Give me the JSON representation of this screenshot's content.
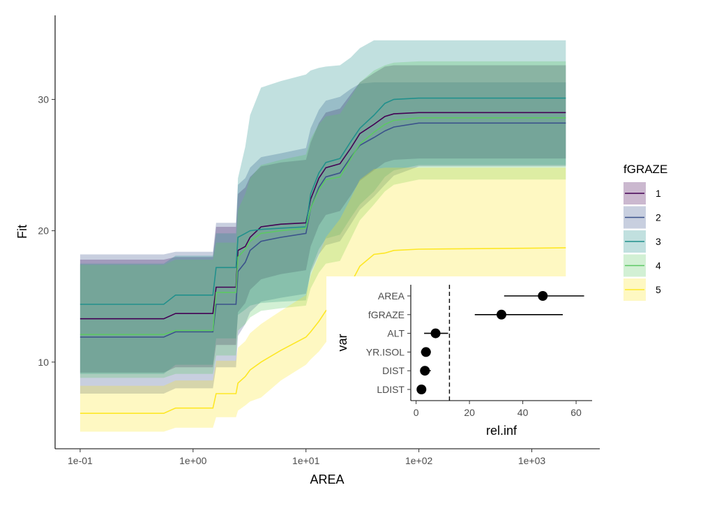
{
  "chart_data": [
    {
      "type": "line",
      "xlabel": "AREA",
      "ylabel": "Fit",
      "x_scale": "log10",
      "xlim": [
        0.06,
        4000
      ],
      "ylim": [
        3.4,
        36.4
      ],
      "x_ticks": [
        0.1,
        1,
        10,
        100,
        1000
      ],
      "x_tick_labels": [
        "1e-01",
        "1e+00",
        "1e+01",
        "1e+02",
        "1e+03"
      ],
      "y_ticks": [
        10,
        20,
        30
      ],
      "y_tick_labels": [
        "10",
        "20",
        "30"
      ],
      "grid": false,
      "legend": {
        "title": "fGRAZE",
        "position": "right",
        "labels": [
          "1",
          "2",
          "3",
          "4",
          "5"
        ]
      },
      "series": [
        {
          "name": "1",
          "color": "#440154",
          "fill_color": "#440154",
          "x": [
            0.1,
            0.55,
            0.7,
            1.5,
            1.6,
            2.4,
            2.5,
            2.9,
            3.2,
            4,
            6,
            10,
            11,
            13,
            15,
            20,
            25,
            30,
            40,
            50,
            60,
            100,
            2000
          ],
          "y": [
            13.3,
            13.3,
            13.7,
            13.7,
            15.7,
            15.7,
            18.5,
            18.8,
            19.5,
            20.3,
            20.5,
            20.6,
            22.4,
            24.0,
            24.8,
            25.1,
            26.3,
            27.4,
            28.1,
            28.7,
            28.9,
            29.0,
            29.0
          ],
          "lower": [
            9.2,
            9.2,
            9.6,
            9.6,
            11.3,
            11.3,
            13.8,
            14.5,
            15.5,
            16.3,
            16.7,
            17.0,
            18.8,
            20.4,
            21.2,
            21.5,
            22.7,
            23.8,
            24.6,
            25.2,
            25.4,
            25.5,
            25.5
          ],
          "upper": [
            17.8,
            17.8,
            18.0,
            18.0,
            20.3,
            20.3,
            22.8,
            23.3,
            24.1,
            24.9,
            25.2,
            25.4,
            26.7,
            28.2,
            29.0,
            29.3,
            30.4,
            31.3,
            32.0,
            32.5,
            32.6,
            32.6,
            32.6
          ]
        },
        {
          "name": "2",
          "color": "#3B528B",
          "fill_color": "#3B528B",
          "x": [
            0.1,
            0.55,
            0.7,
            1.5,
            1.6,
            2.4,
            2.5,
            2.9,
            3.2,
            4,
            6,
            10,
            11,
            13,
            15,
            20,
            25,
            30,
            40,
            50,
            60,
            100,
            2000
          ],
          "y": [
            11.9,
            11.9,
            12.3,
            12.3,
            14.4,
            14.4,
            16.9,
            17.6,
            18.5,
            19.2,
            19.5,
            19.8,
            21.7,
            23.3,
            24.1,
            24.4,
            25.6,
            26.5,
            27.1,
            27.6,
            27.9,
            28.2,
            28.2
          ],
          "lower": [
            7.6,
            7.6,
            8.0,
            8.0,
            9.6,
            9.6,
            12.0,
            12.9,
            13.8,
            14.6,
            14.9,
            15.2,
            16.8,
            18.2,
            18.9,
            19.2,
            20.5,
            21.6,
            22.6,
            23.5,
            24.2,
            24.9,
            24.9
          ],
          "upper": [
            18.2,
            18.2,
            18.4,
            18.4,
            20.6,
            20.6,
            23.5,
            24.0,
            24.8,
            25.6,
            25.9,
            26.3,
            27.8,
            29.2,
            29.9,
            30.2,
            30.8,
            31.2,
            31.3,
            31.3,
            31.3,
            31.3,
            31.3
          ]
        },
        {
          "name": "3",
          "color": "#21908C",
          "fill_color": "#21908C",
          "x": [
            0.1,
            0.55,
            0.7,
            1.5,
            1.6,
            2.4,
            2.5,
            2.9,
            3.2,
            4,
            6,
            10,
            11,
            13,
            15,
            20,
            25,
            30,
            40,
            50,
            60,
            100,
            2000
          ],
          "y": [
            14.4,
            14.4,
            15.1,
            15.1,
            17.2,
            17.2,
            19.5,
            19.8,
            20.0,
            20.1,
            20.2,
            20.3,
            22.8,
            24.4,
            25.2,
            25.5,
            26.8,
            27.8,
            28.8,
            29.7,
            30.0,
            30.1,
            30.1
          ],
          "lower": [
            9.1,
            9.1,
            9.8,
            9.8,
            11.8,
            11.8,
            13.6,
            14.0,
            14.3,
            14.5,
            14.6,
            14.7,
            17.0,
            18.6,
            19.4,
            19.7,
            21.0,
            22.0,
            23.0,
            24.1,
            24.6,
            25.0,
            25.0
          ],
          "upper": [
            17.5,
            17.5,
            18.1,
            18.1,
            19.8,
            19.8,
            24.0,
            26.4,
            28.8,
            30.9,
            31.4,
            31.9,
            32.2,
            32.4,
            32.5,
            32.6,
            33.2,
            33.9,
            34.5,
            34.5,
            34.5,
            34.5,
            34.5
          ]
        },
        {
          "name": "4",
          "color": "#5DC863",
          "fill_color": "#5DC863",
          "x": [
            0.1,
            0.55,
            0.7,
            1.5,
            1.6,
            2.4,
            2.5,
            2.9,
            3.2,
            4,
            6,
            10,
            11,
            13,
            15,
            20,
            25,
            30,
            40,
            50,
            60,
            100,
            2000
          ],
          "y": [
            12.1,
            12.1,
            12.4,
            12.4,
            15.3,
            15.3,
            18.0,
            18.6,
            19.2,
            19.8,
            20.0,
            20.2,
            21.7,
            23.1,
            23.9,
            24.1,
            25.5,
            26.6,
            27.5,
            28.1,
            28.4,
            28.6,
            28.6
          ],
          "lower": [
            8.8,
            8.8,
            9.1,
            9.1,
            10.5,
            10.5,
            12.4,
            12.9,
            13.4,
            13.9,
            14.1,
            14.3,
            15.6,
            16.8,
            17.5,
            17.7,
            19.4,
            20.8,
            22.0,
            23.0,
            23.5,
            23.9,
            23.9
          ],
          "upper": [
            17.4,
            17.4,
            17.8,
            17.8,
            19.1,
            19.1,
            21.6,
            22.8,
            24.0,
            25.0,
            25.4,
            25.8,
            27.0,
            28.1,
            28.7,
            28.9,
            30.2,
            31.3,
            32.2,
            32.6,
            32.8,
            32.9,
            32.9
          ]
        },
        {
          "name": "5",
          "color": "#FDE725",
          "fill_color": "#FDE725",
          "x": [
            0.1,
            0.55,
            0.7,
            1.5,
            1.6,
            2.4,
            2.5,
            2.9,
            3.2,
            4,
            6,
            10,
            11,
            13,
            15,
            20,
            25,
            30,
            40,
            50,
            60,
            100,
            2000
          ],
          "y": [
            6.1,
            6.1,
            6.5,
            6.5,
            7.6,
            7.6,
            8.4,
            8.9,
            9.4,
            10.0,
            10.9,
            11.9,
            12.3,
            13.1,
            13.9,
            14.8,
            16.0,
            17.3,
            18.2,
            18.3,
            18.5,
            18.6,
            18.7
          ],
          "lower": [
            4.7,
            4.7,
            5.0,
            5.0,
            5.8,
            5.8,
            6.3,
            6.7,
            7.0,
            7.3,
            8.6,
            9.8,
            10.2,
            10.8,
            11.5,
            12.3,
            13.3,
            14.3,
            15.1,
            15.6,
            16.0,
            16.4,
            16.4
          ],
          "upper": [
            8.2,
            8.2,
            8.6,
            8.6,
            10.1,
            10.1,
            11.1,
            11.6,
            12.2,
            12.9,
            13.9,
            15.1,
            16.6,
            18.1,
            19.5,
            20.9,
            22.5,
            23.9,
            24.7,
            24.8,
            24.8,
            24.8,
            24.8
          ]
        }
      ]
    },
    {
      "type": "scatter",
      "subtype": "dot-and-whisker",
      "xlabel": "rel.inf",
      "ylabel": "var",
      "xlim": [
        -2,
        66
      ],
      "x_ticks": [
        0,
        20,
        40,
        60
      ],
      "x_tick_labels": [
        "0",
        "20",
        "40",
        "60"
      ],
      "categories": [
        "AREA",
        "fGRAZE",
        "ALT",
        "YR.ISOL",
        "DIST",
        "LDIST"
      ],
      "values": [
        47.5,
        32.0,
        7.3,
        3.7,
        3.3,
        2.0
      ],
      "lower": [
        33.0,
        22.0,
        3.0,
        1.8,
        1.5,
        1.0
      ],
      "upper": [
        63.0,
        55.0,
        12.0,
        5.5,
        5.5,
        3.0
      ],
      "reference_line": {
        "x": 12.5,
        "style": "dashed"
      },
      "point_color": "#000000",
      "grid": false
    }
  ]
}
